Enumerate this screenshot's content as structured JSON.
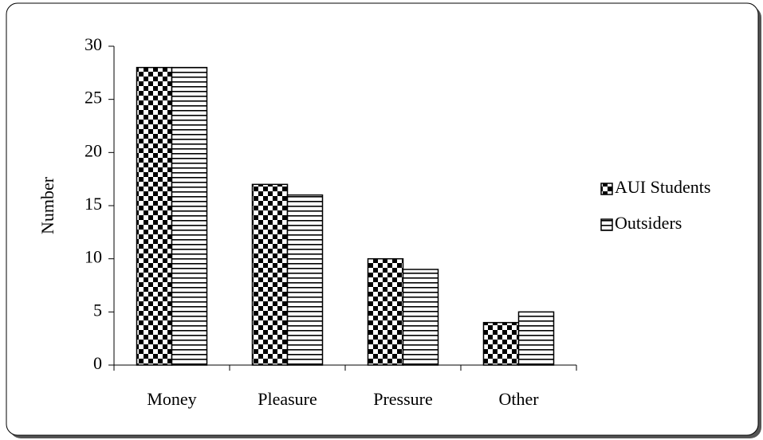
{
  "chart_data": {
    "type": "bar",
    "y_label": "Number",
    "categories": [
      "Money",
      "Pleasure",
      "Pressure",
      "Other"
    ],
    "series": [
      {
        "name": "AUI Students",
        "color": "#000000",
        "pattern": "checker",
        "values": [
          28,
          17,
          10,
          4
        ]
      },
      {
        "name": "Outsiders",
        "color": "#000000",
        "pattern": "horizontal",
        "values": [
          28,
          16,
          9,
          5
        ]
      }
    ],
    "ylim": [
      0,
      30
    ],
    "yticks": [
      0,
      5,
      10,
      15,
      20,
      25,
      30
    ],
    "legend": "right",
    "grid": false
  }
}
